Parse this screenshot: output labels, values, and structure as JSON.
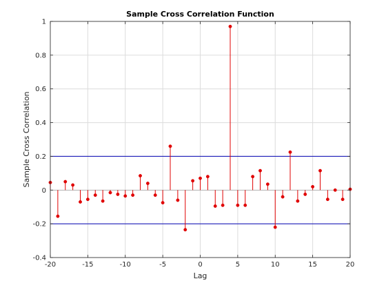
{
  "chart_data": {
    "type": "stem",
    "title": "Sample Cross Correlation Function",
    "xlabel": "Lag",
    "ylabel": "Sample Cross Correlation",
    "xlim": [
      -20,
      20
    ],
    "ylim": [
      -0.4,
      1
    ],
    "grid": true,
    "x_ticks": [
      -20,
      -15,
      -10,
      -5,
      0,
      5,
      10,
      15,
      20
    ],
    "y_ticks": [
      -0.4,
      -0.2,
      0,
      0.2,
      0.4,
      0.6,
      0.8,
      1
    ],
    "x_tick_labels": [
      "-20",
      "-15",
      "-10",
      "-5",
      "0",
      "5",
      "10",
      "15",
      "20"
    ],
    "y_tick_labels": [
      "-0.4",
      "-0.2",
      "0",
      "0.2",
      "0.4",
      "0.6",
      "0.8",
      "1"
    ],
    "confidence_bounds": [
      0.2,
      -0.2
    ],
    "series": [
      {
        "x": [
          -20,
          -19,
          -18,
          -17,
          -16,
          -15,
          -14,
          -13,
          -12,
          -11,
          -10,
          -9,
          -8,
          -7,
          -6,
          -5,
          -4,
          -3,
          -2,
          -1,
          0,
          1,
          2,
          3,
          4,
          5,
          6,
          7,
          8,
          9,
          10,
          11,
          12,
          13,
          14,
          15,
          16,
          17,
          18,
          19,
          20
        ],
        "values": [
          0.045,
          -0.155,
          0.05,
          0.03,
          -0.07,
          -0.055,
          -0.03,
          -0.065,
          -0.015,
          -0.025,
          -0.035,
          -0.03,
          0.085,
          0.04,
          -0.03,
          -0.075,
          0.26,
          -0.06,
          -0.235,
          0.055,
          0.07,
          0.08,
          -0.095,
          -0.09,
          0.97,
          -0.09,
          -0.09,
          0.08,
          0.115,
          0.035,
          -0.22,
          -0.04,
          0.225,
          -0.065,
          -0.025,
          0.02,
          0.115,
          -0.055,
          0.0,
          -0.055,
          0.005
        ]
      }
    ],
    "colors": {
      "stem": "#e00000",
      "bounds": "#0000b4",
      "grid": "#dcdcdc",
      "axis": "#262626"
    }
  }
}
